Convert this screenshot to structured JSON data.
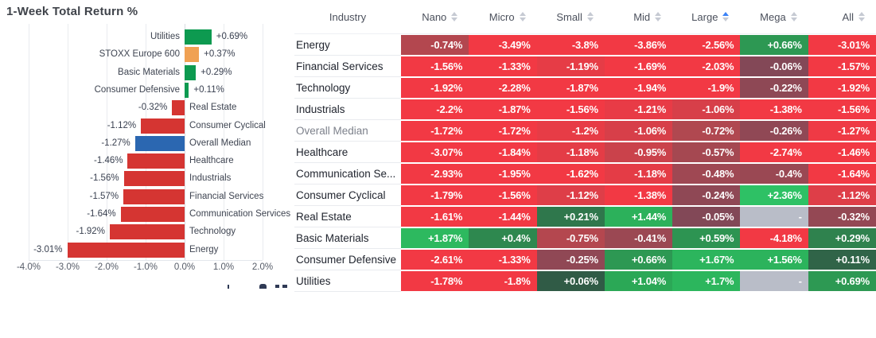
{
  "chart_data": [
    {
      "type": "bar",
      "orientation": "horizontal",
      "title": "1-Week Total Return %",
      "categories": [
        "Utilities",
        "STOXX Europe 600",
        "Basic Materials",
        "Consumer Defensive",
        "Real Estate",
        "Consumer Cyclical",
        "Overall Median",
        "Healthcare",
        "Industrials",
        "Financial Services",
        "Communication Services",
        "Technology",
        "Energy"
      ],
      "values": [
        0.69,
        0.37,
        0.29,
        0.11,
        -0.32,
        -1.12,
        -1.27,
        -1.46,
        -1.56,
        -1.57,
        -1.64,
        -1.92,
        -3.01
      ],
      "labels": [
        "+0.69%",
        "+0.37%",
        "+0.29%",
        "+0.11%",
        "-0.32%",
        "-1.12%",
        "-1.27%",
        "-1.46%",
        "-1.56%",
        "-1.57%",
        "-1.64%",
        "-1.92%",
        "-3.01%"
      ],
      "bar_colors": [
        "green",
        "orange",
        "green",
        "green",
        "red",
        "red",
        "blue",
        "red",
        "red",
        "red",
        "red",
        "red",
        "red"
      ],
      "x_ticks": [
        "-4.0%",
        "-3.0%",
        "-2.0%",
        "-1.0%",
        "0.0%",
        "1.0%",
        "2.0%"
      ],
      "xlim": [
        -4.5,
        2.5
      ],
      "grid": true,
      "legend": false
    },
    {
      "type": "heatmap",
      "columns": [
        "Industry",
        "Nano",
        "Micro",
        "Small",
        "Mid",
        "Large",
        "Mega",
        "All"
      ],
      "sort": {
        "column": "Large",
        "direction": "asc"
      },
      "missing_value": "-",
      "rows": [
        {
          "industry": "Energy",
          "muted": false,
          "cells": [
            "-0.74%",
            "-3.49%",
            "-3.8%",
            "-3.86%",
            "-2.56%",
            "+0.66%",
            "-3.01%"
          ]
        },
        {
          "industry": "Financial Services",
          "muted": false,
          "cells": [
            "-1.56%",
            "-1.33%",
            "-1.19%",
            "-1.69%",
            "-2.03%",
            "-0.06%",
            "-1.57%"
          ]
        },
        {
          "industry": "Technology",
          "muted": false,
          "cells": [
            "-1.92%",
            "-2.28%",
            "-1.87%",
            "-1.94%",
            "-1.9%",
            "-0.22%",
            "-1.92%"
          ]
        },
        {
          "industry": "Industrials",
          "muted": false,
          "cells": [
            "-2.2%",
            "-1.87%",
            "-1.56%",
            "-1.21%",
            "-1.06%",
            "-1.38%",
            "-1.56%"
          ]
        },
        {
          "industry": "Overall Median",
          "muted": true,
          "cells": [
            "-1.72%",
            "-1.72%",
            "-1.2%",
            "-1.06%",
            "-0.72%",
            "-0.26%",
            "-1.27%"
          ]
        },
        {
          "industry": "Healthcare",
          "muted": false,
          "cells": [
            "-3.07%",
            "-1.84%",
            "-1.18%",
            "-0.95%",
            "-0.57%",
            "-2.74%",
            "-1.46%"
          ]
        },
        {
          "industry": "Communication Se...",
          "muted": false,
          "cells": [
            "-2.93%",
            "-1.95%",
            "-1.62%",
            "-1.18%",
            "-0.48%",
            "-0.4%",
            "-1.64%"
          ]
        },
        {
          "industry": "Consumer Cyclical",
          "muted": false,
          "cells": [
            "-1.79%",
            "-1.56%",
            "-1.12%",
            "-1.38%",
            "-0.24%",
            "+2.36%",
            "-1.12%"
          ]
        },
        {
          "industry": "Real Estate",
          "muted": false,
          "cells": [
            "-1.61%",
            "-1.44%",
            "+0.21%",
            "+1.44%",
            "-0.05%",
            "-",
            "-0.32%"
          ]
        },
        {
          "industry": "Basic Materials",
          "muted": false,
          "cells": [
            "+1.87%",
            "+0.4%",
            "-0.75%",
            "-0.41%",
            "+0.59%",
            "-4.18%",
            "+0.29%"
          ]
        },
        {
          "industry": "Consumer Defensive",
          "muted": false,
          "cells": [
            "-2.61%",
            "-1.33%",
            "-0.25%",
            "+0.66%",
            "+1.67%",
            "+1.56%",
            "+0.11%"
          ]
        },
        {
          "industry": "Utilities",
          "muted": false,
          "cells": [
            "-1.78%",
            "-1.8%",
            "+0.06%",
            "+1.04%",
            "+1.7%",
            "-",
            "+0.69%"
          ]
        }
      ]
    }
  ],
  "colors": {
    "chart_bars": {
      "green": "#0d9a50",
      "orange": "#f0a153",
      "red": "#d53532",
      "blue": "#2b67b1"
    },
    "heat": {
      "missing": "#b9bdc8",
      "neg_stops": [
        [
          0,
          "#7f4858"
        ],
        [
          0.7,
          "#ae4850"
        ],
        [
          1.3,
          "#f23944"
        ]
      ],
      "pos_stops": [
        [
          0,
          "#304f44"
        ],
        [
          0.25,
          "#2f7f4d"
        ],
        [
          0.6,
          "#2d9552"
        ],
        [
          1.1,
          "#2bab57"
        ],
        [
          2.4,
          "#2ec265"
        ]
      ]
    },
    "sort_active": "#3b82f6"
  }
}
